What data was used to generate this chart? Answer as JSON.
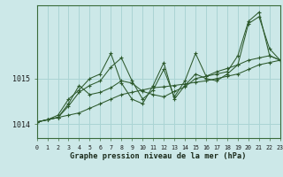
{
  "title": "Graphe pression niveau de la mer (hPa)",
  "bg_color": "#cce8e8",
  "grid_color": "#aad4d4",
  "line_color": "#2d5a2d",
  "x_min": 0,
  "x_max": 23,
  "y_min": 1013.7,
  "y_max": 1016.6,
  "yticks": [
    1014,
    1015
  ],
  "xticks": [
    0,
    1,
    2,
    3,
    4,
    5,
    6,
    7,
    8,
    9,
    10,
    11,
    12,
    13,
    14,
    15,
    16,
    17,
    18,
    19,
    20,
    21,
    22,
    23
  ],
  "series": [
    [
      1014.05,
      1014.1,
      1014.15,
      1014.2,
      1014.25,
      1014.35,
      1014.45,
      1014.55,
      1014.65,
      1014.7,
      1014.75,
      1014.8,
      1014.82,
      1014.85,
      1014.88,
      1014.92,
      1014.95,
      1015.0,
      1015.05,
      1015.1,
      1015.2,
      1015.3,
      1015.35,
      1015.4
    ],
    [
      1014.05,
      1014.1,
      1014.15,
      1014.4,
      1014.7,
      1014.85,
      1014.95,
      1015.25,
      1015.45,
      1014.95,
      1014.55,
      1014.75,
      1015.2,
      1014.6,
      1014.95,
      1015.55,
      1015.05,
      1015.1,
      1015.15,
      1015.5,
      1016.25,
      1016.45,
      1015.5,
      1015.4
    ],
    [
      1014.05,
      1014.1,
      1014.2,
      1014.55,
      1014.75,
      1015.0,
      1015.1,
      1015.55,
      1014.9,
      1014.55,
      1014.45,
      1014.85,
      1015.35,
      1014.55,
      1014.85,
      1015.1,
      1015.0,
      1014.95,
      1015.1,
      1015.3,
      1016.2,
      1016.35,
      1015.65,
      1015.4
    ],
    [
      1014.05,
      1014.1,
      1014.15,
      1014.45,
      1014.85,
      1014.65,
      1014.7,
      1014.8,
      1014.95,
      1014.9,
      1014.72,
      1014.65,
      1014.6,
      1014.72,
      1014.82,
      1015.0,
      1015.05,
      1015.15,
      1015.22,
      1015.3,
      1015.4,
      1015.45,
      1015.5,
      1015.4
    ]
  ]
}
